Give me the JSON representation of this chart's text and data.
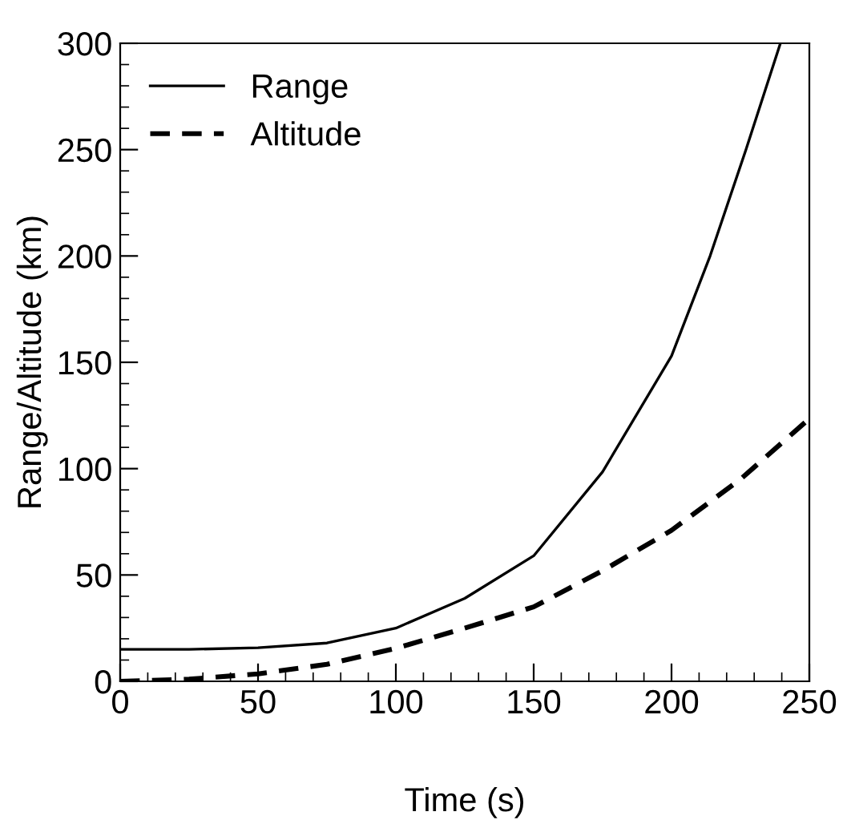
{
  "chart_data": {
    "type": "line",
    "xlabel": "Time (s)",
    "ylabel": "Range/Altitude (km)",
    "xlim": [
      0,
      250
    ],
    "ylim": [
      0,
      300
    ],
    "xticks": [
      0,
      50,
      100,
      150,
      200,
      250
    ],
    "yticks": [
      0,
      50,
      100,
      150,
      200,
      250,
      300
    ],
    "grid": false,
    "legend": "top left",
    "marker": "none",
    "series": [
      {
        "name": "Range",
        "color": "#000000",
        "line_style": "solid",
        "x": [
          0,
          25,
          50,
          75,
          100,
          125,
          150,
          175,
          200,
          214,
          227,
          239.5
        ],
        "values": [
          15,
          15,
          15.8,
          18,
          25,
          39,
          59,
          98.5,
          153,
          200,
          250,
          300
        ]
      },
      {
        "name": "Altitude",
        "color": "#000000",
        "line_style": "dashed",
        "x": [
          0,
          25,
          50,
          75,
          100,
          125,
          150,
          175,
          200,
          225,
          250
        ],
        "values": [
          0,
          1,
          3.5,
          8,
          15.5,
          25,
          35,
          52,
          71,
          95,
          123.5
        ]
      }
    ]
  }
}
